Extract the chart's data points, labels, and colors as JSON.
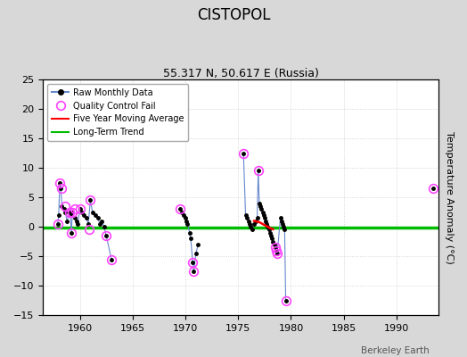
{
  "title": "CISTOPOL",
  "subtitle": "55.317 N, 50.617 E (Russia)",
  "ylabel": "Temperature Anomaly (°C)",
  "xlabel_bottom": "Berkeley Earth",
  "ylim": [
    -15,
    25
  ],
  "xlim": [
    1956.5,
    1994
  ],
  "xticks": [
    1960,
    1965,
    1970,
    1975,
    1980,
    1985,
    1990
  ],
  "yticks": [
    -15,
    -10,
    -5,
    0,
    5,
    10,
    15,
    20,
    25
  ],
  "fig_bg_color": "#d8d8d8",
  "plot_bg_color": "#ffffff",
  "raw_color": "#6688cc",
  "raw_dot_color": "#000000",
  "qc_fail_color": "#ff44ff",
  "ma_color": "#ff0000",
  "trend_color": "#00bb00",
  "trend_y": -0.2,
  "raw_data": [
    [
      1958.1,
      7.5
    ],
    [
      1958.3,
      6.5
    ],
    [
      1958.6,
      3.5
    ],
    [
      1958.1,
      7.5
    ],
    [
      1959.3,
      2.5
    ],
    [
      1959.5,
      3.0
    ],
    [
      1957.9,
      0.5
    ],
    [
      1958.0,
      2.0
    ],
    [
      1958.1,
      7.5
    ],
    [
      1959.0,
      2.5
    ],
    [
      1959.1,
      2.0
    ],
    [
      1959.3,
      2.5
    ],
    [
      1959.5,
      1.5
    ],
    [
      1959.7,
      1.0
    ],
    [
      1960.0,
      3.0
    ],
    [
      1960.2,
      2.5
    ],
    [
      1960.4,
      2.0
    ],
    [
      1960.7,
      1.5
    ],
    [
      1961.0,
      4.5
    ],
    [
      1961.3,
      2.5
    ],
    [
      1961.5,
      2.0
    ],
    [
      1961.8,
      2.0
    ],
    [
      1962.0,
      1.5
    ],
    [
      1962.3,
      1.0
    ],
    [
      1958.9,
      0.0
    ],
    [
      1959.0,
      -0.5
    ],
    [
      1959.2,
      -1.0
    ],
    [
      1959.8,
      0.5
    ],
    [
      1960.0,
      0.0
    ],
    [
      1960.3,
      0.5
    ],
    [
      1960.6,
      0.0
    ],
    [
      1960.9,
      -0.5
    ],
    [
      1961.2,
      0.0
    ],
    [
      1961.5,
      0.5
    ],
    [
      1961.8,
      0.0
    ],
    [
      1962.5,
      -1.5
    ],
    [
      1963.0,
      -5.5
    ],
    [
      1969.5,
      3.0
    ],
    [
      1969.7,
      2.5
    ],
    [
      1969.8,
      2.0
    ],
    [
      1970.0,
      1.5
    ],
    [
      1970.1,
      1.0
    ],
    [
      1970.2,
      0.5
    ],
    [
      1970.3,
      0.0
    ],
    [
      1970.4,
      -1.0
    ],
    [
      1970.5,
      -2.0
    ],
    [
      1970.6,
      -4.5
    ],
    [
      1970.7,
      -6.0
    ],
    [
      1970.8,
      -7.5
    ],
    [
      1971.0,
      -4.5
    ],
    [
      1971.2,
      -3.0
    ],
    [
      1975.5,
      12.5
    ],
    [
      1975.7,
      2.0
    ],
    [
      1975.8,
      1.5
    ],
    [
      1976.0,
      1.0
    ],
    [
      1976.1,
      0.5
    ],
    [
      1976.2,
      0.0
    ],
    [
      1976.3,
      -0.5
    ],
    [
      1976.5,
      0.5
    ],
    [
      1976.7,
      1.0
    ],
    [
      1976.8,
      1.5
    ],
    [
      1976.9,
      9.5
    ],
    [
      1977.0,
      4.0
    ],
    [
      1977.1,
      3.5
    ],
    [
      1977.2,
      3.0
    ],
    [
      1977.3,
      2.5
    ],
    [
      1977.4,
      2.0
    ],
    [
      1977.5,
      1.5
    ],
    [
      1977.6,
      1.0
    ],
    [
      1977.7,
      0.5
    ],
    [
      1977.8,
      0.0
    ],
    [
      1977.9,
      -0.5
    ],
    [
      1978.0,
      -1.0
    ],
    [
      1978.1,
      -1.5
    ],
    [
      1978.2,
      -2.0
    ],
    [
      1978.3,
      -2.5
    ],
    [
      1978.4,
      -3.0
    ],
    [
      1978.5,
      -3.5
    ],
    [
      1978.6,
      -4.0
    ],
    [
      1978.7,
      -4.5
    ],
    [
      1979.0,
      1.5
    ],
    [
      1979.1,
      1.0
    ],
    [
      1979.2,
      0.5
    ],
    [
      1979.3,
      0.0
    ],
    [
      1979.4,
      -0.5
    ],
    [
      1979.5,
      -12.5
    ],
    [
      1993.5,
      6.5
    ]
  ],
  "qc_fail_points": [
    [
      1958.1,
      7.5
    ],
    [
      1958.3,
      6.5
    ],
    [
      1958.6,
      3.5
    ],
    [
      1959.0,
      2.5
    ],
    [
      1959.5,
      3.0
    ],
    [
      1957.9,
      0.5
    ],
    [
      1959.3,
      2.5
    ],
    [
      1960.0,
      3.0
    ],
    [
      1961.0,
      4.5
    ],
    [
      1962.5,
      -1.5
    ],
    [
      1963.0,
      -5.5
    ],
    [
      1959.2,
      -1.0
    ],
    [
      1960.9,
      -0.5
    ],
    [
      1969.5,
      3.0
    ],
    [
      1970.7,
      -6.0
    ],
    [
      1970.8,
      -7.5
    ],
    [
      1975.5,
      12.5
    ],
    [
      1976.9,
      9.5
    ],
    [
      1978.5,
      -3.5
    ],
    [
      1978.6,
      -4.0
    ],
    [
      1978.7,
      -4.5
    ],
    [
      1979.5,
      -12.5
    ],
    [
      1993.5,
      6.5
    ]
  ],
  "raw_segments": [
    [
      [
        1958.1,
        1958.1
      ],
      [
        7.5,
        0.5
      ]
    ],
    [
      [
        1959.0,
        1959.0
      ],
      [
        2.5,
        -1.0
      ]
    ],
    [
      [
        1958.0,
        1963.5
      ],
      [
        0.0,
        0.0
      ]
    ],
    [
      [
        1969.5,
        1971.2
      ],
      [
        0.0,
        0.0
      ]
    ],
    [
      [
        1975.5,
        1979.5
      ],
      [
        0.0,
        0.0
      ]
    ],
    [
      [
        1993.5,
        1993.5
      ],
      [
        0.0,
        0.0
      ]
    ]
  ],
  "ma_data": [
    [
      1976.5,
      1.0
    ],
    [
      1977.0,
      0.8
    ],
    [
      1977.5,
      0.3
    ],
    [
      1978.0,
      -0.2
    ],
    [
      1978.3,
      -0.4
    ]
  ],
  "cluster1_x": [
    1957.9,
    1958.0,
    1958.1,
    1958.2,
    1958.3,
    1958.5,
    1958.6,
    1958.8,
    1959.0,
    1959.1,
    1959.2,
    1959.3,
    1959.5,
    1959.7,
    1959.8,
    1960.0,
    1960.2,
    1960.4,
    1960.6,
    1960.8,
    1961.0,
    1961.2,
    1961.5,
    1961.7,
    1961.9,
    1962.1,
    1962.3,
    1962.5,
    1963.0
  ],
  "cluster1_y": [
    0.5,
    2.0,
    7.5,
    6.5,
    3.5,
    3.0,
    2.5,
    1.0,
    2.5,
    2.0,
    -1.0,
    2.5,
    1.5,
    1.0,
    0.5,
    3.0,
    2.5,
    2.0,
    1.5,
    0.5,
    4.5,
    2.5,
    2.0,
    1.5,
    0.5,
    1.0,
    0.0,
    -1.5,
    -5.5
  ],
  "cluster2_x": [
    1969.5,
    1969.7,
    1969.8,
    1970.0,
    1970.1,
    1970.2,
    1970.4,
    1970.5,
    1970.7,
    1970.8,
    1971.0,
    1971.2
  ],
  "cluster2_y": [
    3.0,
    2.5,
    2.0,
    1.5,
    1.0,
    0.5,
    -1.0,
    -2.0,
    -6.0,
    -7.5,
    -4.5,
    -3.0
  ],
  "cluster3_x": [
    1975.5,
    1975.7,
    1975.8,
    1976.0,
    1976.1,
    1976.2,
    1976.3,
    1976.5,
    1976.7,
    1976.8,
    1976.9,
    1977.0,
    1977.1,
    1977.2,
    1977.3,
    1977.4,
    1977.5,
    1977.6,
    1977.7,
    1977.8,
    1977.9,
    1978.0,
    1978.1,
    1978.2,
    1978.3,
    1978.4,
    1978.5,
    1978.6,
    1978.7,
    1979.0,
    1979.1,
    1979.2,
    1979.3,
    1979.4,
    1979.5
  ],
  "cluster3_y": [
    12.5,
    2.0,
    1.5,
    1.0,
    0.5,
    0.0,
    -0.5,
    0.5,
    1.0,
    1.5,
    9.5,
    4.0,
    3.5,
    3.0,
    2.5,
    2.0,
    1.5,
    1.0,
    0.5,
    0.0,
    -0.5,
    -1.0,
    -1.5,
    -2.0,
    -2.5,
    -3.0,
    -3.5,
    -4.0,
    -4.5,
    1.5,
    1.0,
    0.5,
    0.0,
    -0.5,
    -12.5
  ],
  "solo_x": [
    1993.5
  ],
  "solo_y": [
    6.5
  ]
}
